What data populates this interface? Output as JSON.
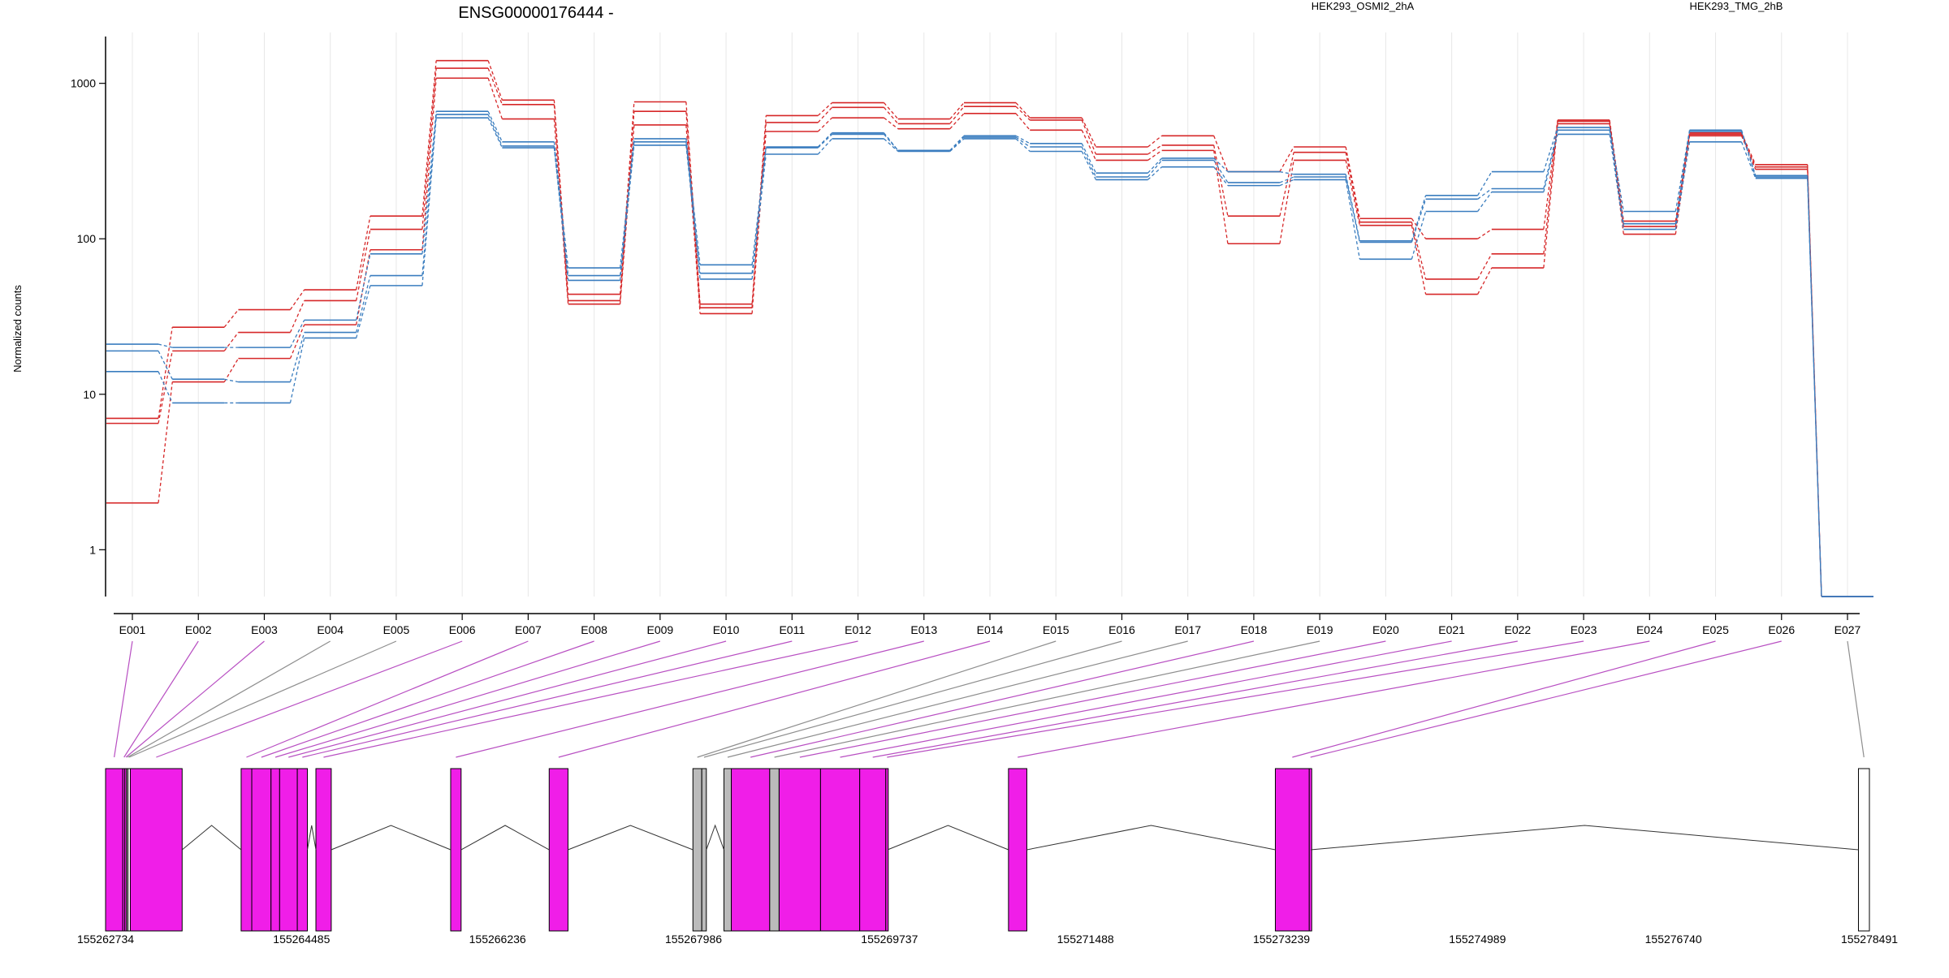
{
  "chart_data": {
    "type": "line",
    "title": "ENSG00000176444 -",
    "ylabel": "Normalized counts",
    "yscale": "log",
    "ylim": [
      0.5,
      2000
    ],
    "yticks": [
      1,
      10,
      100,
      1000
    ],
    "grid": "vertical lines at exon centers",
    "legend": "top, two colored text labels",
    "categories": [
      "E001",
      "E002",
      "E003",
      "E004",
      "E005",
      "E006",
      "E007",
      "E008",
      "E009",
      "E010",
      "E011",
      "E012",
      "E013",
      "E014",
      "E015",
      "E016",
      "E017",
      "E018",
      "E019",
      "E020",
      "E021",
      "E022",
      "E023",
      "E024",
      "E025",
      "E026",
      "E027"
    ],
    "groups": [
      {
        "name": "HEK293_OSMI2_2hA",
        "color": "#d62728"
      },
      {
        "name": "HEK293_TMG_2hB",
        "color": "#3a7dbf"
      }
    ],
    "series": [
      {
        "group": 0,
        "values": [
          7,
          27,
          35,
          47,
          140,
          1400,
          780,
          44,
          760,
          38,
          620,
          750,
          590,
          750,
          600,
          390,
          460,
          270,
          390,
          135,
          100,
          115,
          580,
          130,
          480,
          300,
          0.5
        ]
      },
      {
        "group": 0,
        "values": [
          6.5,
          19,
          25,
          40,
          115,
          1250,
          730,
          40,
          660,
          36,
          560,
          700,
          550,
          710,
          580,
          350,
          400,
          140,
          360,
          128,
          55,
          80,
          570,
          120,
          470,
          290,
          0.5
        ]
      },
      {
        "group": 0,
        "values": [
          2,
          12,
          17,
          28,
          85,
          1080,
          590,
          38,
          540,
          33,
          490,
          600,
          510,
          640,
          500,
          320,
          370,
          93,
          320,
          122,
          44,
          65,
          550,
          107,
          460,
          280,
          0.5
        ]
      },
      {
        "group": 1,
        "values": [
          21,
          20,
          20,
          30,
          80,
          660,
          420,
          65,
          440,
          68,
          390,
          480,
          370,
          460,
          410,
          265,
          330,
          270,
          260,
          97,
          190,
          270,
          520,
          150,
          500,
          255,
          0.5
        ]
      },
      {
        "group": 1,
        "values": [
          19,
          12.5,
          12,
          25,
          58,
          630,
          395,
          58,
          420,
          60,
          385,
          470,
          370,
          450,
          390,
          250,
          320,
          230,
          250,
          95,
          180,
          210,
          500,
          125,
          490,
          250,
          0.5
        ]
      },
      {
        "group": 1,
        "values": [
          14,
          8.8,
          8.8,
          23,
          50,
          600,
          385,
          54,
          400,
          55,
          350,
          440,
          365,
          440,
          365,
          240,
          290,
          220,
          240,
          74,
          150,
          200,
          470,
          115,
          420,
          245,
          0.5
        ]
      }
    ],
    "gene_model": {
      "coordinate_labels": [
        "155262734",
        "155264485",
        "155266236",
        "155267986",
        "155269737",
        "155271488",
        "155273239",
        "155274989",
        "155276740",
        "155278491"
      ],
      "coordinate_range": [
        155262734,
        155278491
      ],
      "exon_blocks": [
        {
          "start": 155262734,
          "end": 155262888,
          "color": "#f01ee8",
          "exon": "E001"
        },
        {
          "start": 155262888,
          "end": 155262905,
          "color": "#f01ee8",
          "exon": "E002"
        },
        {
          "start": 155262905,
          "end": 155262920,
          "color": "#f01ee8",
          "exon": "E003"
        },
        {
          "start": 155262920,
          "end": 155262934,
          "color": "#bbbbbb",
          "exon": "E004"
        },
        {
          "start": 155262934,
          "end": 155262955,
          "color": "#ffffff",
          "exon": "E005"
        },
        {
          "start": 155262955,
          "end": 155263418,
          "color": "#f01ee8",
          "exon": "E006"
        },
        {
          "start": 155263945,
          "end": 155264040,
          "color": "#f01ee8",
          "exon": "E007"
        },
        {
          "start": 155264040,
          "end": 155264212,
          "color": "#f01ee8",
          "exon": "E008"
        },
        {
          "start": 155264212,
          "end": 155264289,
          "color": "#f01ee8",
          "exon": "E009"
        },
        {
          "start": 155264289,
          "end": 155264447,
          "color": "#f01ee8",
          "exon": "E010"
        },
        {
          "start": 155264447,
          "end": 155264537,
          "color": "#f01ee8",
          "exon": "E011"
        },
        {
          "start": 155264613,
          "end": 155264750,
          "color": "#f01ee8",
          "exon": "E012"
        },
        {
          "start": 155265817,
          "end": 155265910,
          "color": "#f01ee8",
          "exon": "E013"
        },
        {
          "start": 155266697,
          "end": 155266865,
          "color": "#f01ee8",
          "exon": "E014"
        },
        {
          "start": 155267981,
          "end": 155268060,
          "color": "#bbbbbb",
          "exon": "E015"
        },
        {
          "start": 155268060,
          "end": 155268101,
          "color": "#bbbbbb",
          "exon": "E016"
        },
        {
          "start": 155268258,
          "end": 155268324,
          "color": "#bbbbbb",
          "exon": "E017"
        },
        {
          "start": 155268324,
          "end": 155268667,
          "color": "#f01ee8",
          "exon": "E018"
        },
        {
          "start": 155268667,
          "end": 155268751,
          "color": "#bbbbbb",
          "exon": "E019"
        },
        {
          "start": 155268751,
          "end": 155269121,
          "color": "#f01ee8",
          "exon": "E020"
        },
        {
          "start": 155269121,
          "end": 155269471,
          "color": "#f01ee8",
          "exon": "E021"
        },
        {
          "start": 155269471,
          "end": 155269704,
          "color": "#f01ee8",
          "exon": "E022"
        },
        {
          "start": 155269704,
          "end": 155269720,
          "color": "#f01ee8",
          "exon": "E023"
        },
        {
          "start": 155270800,
          "end": 155270964,
          "color": "#f01ee8",
          "exon": "E024"
        },
        {
          "start": 155273184,
          "end": 155273487,
          "color": "#f01ee8",
          "exon": "E025"
        },
        {
          "start": 155273487,
          "end": 155273500,
          "color": "#f01ee8",
          "exon": "E026"
        },
        {
          "start": 155278393,
          "end": 155278491,
          "color": "#ffffff",
          "exon": "E027"
        }
      ]
    }
  }
}
